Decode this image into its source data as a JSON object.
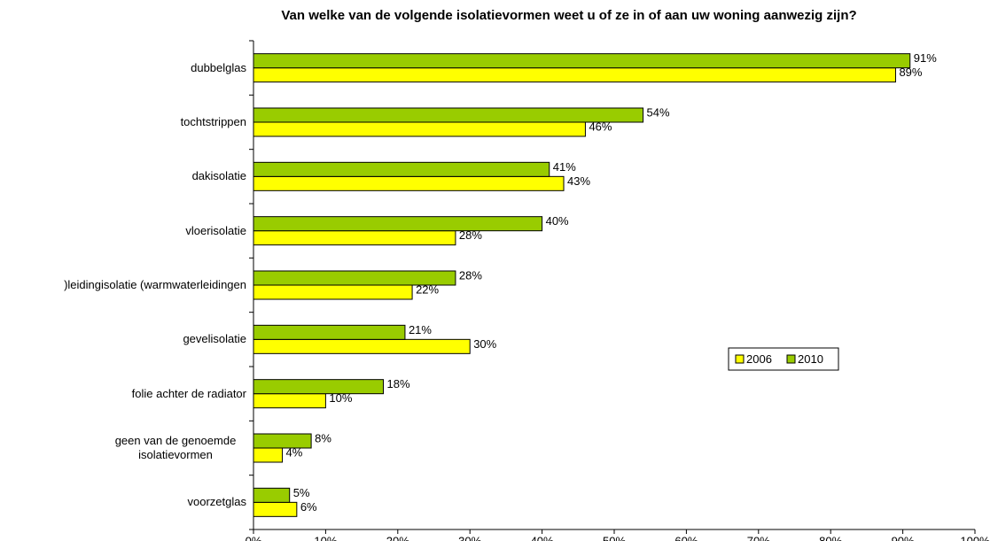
{
  "chart_data": {
    "type": "bar",
    "orientation": "horizontal",
    "title": "Van welke van de volgende isolatievormen weet u of ze in of aan uw woning aanwezig zijn?",
    "categories": [
      "dubbelglas",
      "tochtstrippen",
      "dakisolatie",
      "vloerisolatie",
      ")leidingisolatie (warmwaterleidingen",
      "gevelisolatie",
      "folie achter de radiator",
      "geen van de genoemde isolatievormen",
      "voorzetglas"
    ],
    "series": [
      {
        "name": "2006",
        "color": "#ffff00",
        "values": [
          89,
          46,
          43,
          28,
          22,
          30,
          10,
          4,
          6
        ],
        "value_labels": [
          "89%",
          "46%",
          "43%",
          "28%",
          "22%",
          "30%",
          "10%",
          "4%",
          "6%"
        ]
      },
      {
        "name": "2010",
        "color": "#99cc00",
        "values": [
          91,
          54,
          41,
          40,
          28,
          21,
          18,
          8,
          5
        ],
        "value_labels": [
          "91%",
          "54%",
          "41%",
          "40%",
          "28%",
          "21%",
          "18%",
          "8%",
          "5%"
        ]
      }
    ],
    "xlim": [
      0,
      100
    ],
    "xticks": [
      {
        "value": 0,
        "label": "0%"
      },
      {
        "value": 10,
        "label": "10%"
      },
      {
        "value": 20,
        "label": "20%"
      },
      {
        "value": 30,
        "label": "30%"
      },
      {
        "value": 40,
        "label": "40%"
      },
      {
        "value": 50,
        "label": "50%"
      },
      {
        "value": 60,
        "label": "60%"
      },
      {
        "value": 70,
        "label": "70%"
      },
      {
        "value": 80,
        "label": "80%"
      },
      {
        "value": 90,
        "label": "90%"
      },
      {
        "value": 100,
        "label": "100%"
      }
    ],
    "grid": false,
    "legend": "right"
  }
}
